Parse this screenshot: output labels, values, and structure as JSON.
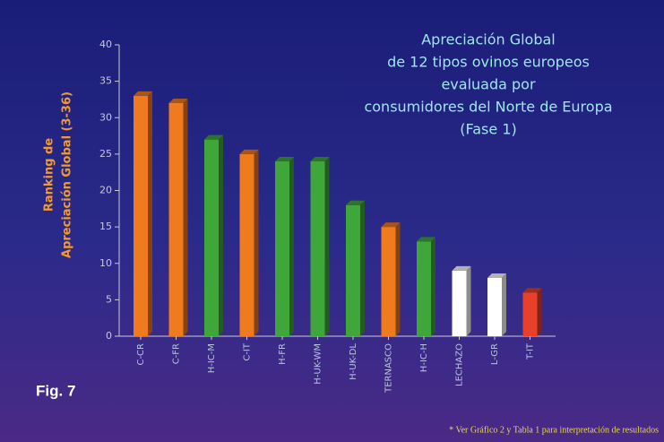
{
  "chart_data": {
    "type": "bar",
    "title": [
      "Apreciación Global",
      "de 12 tipos ovinos europeos",
      "evaluada por",
      "consumidores del Norte de Europa",
      "(Fase 1)"
    ],
    "y_label": [
      "Ranking de",
      "Apreciación Global (3-36)"
    ],
    "categories": [
      "C-CR",
      "C-FR",
      "H-IC-M",
      "C-IT",
      "H-FR",
      "H-UK-WM",
      "H-UK-DL",
      "TERNASCO",
      "H-IC-H",
      "LECHAZO",
      "L-GR",
      "T-IT"
    ],
    "values": [
      33,
      32,
      27,
      25,
      24,
      24,
      18,
      15,
      13,
      9,
      8,
      6
    ],
    "colors": [
      "#f07a1e",
      "#f07a1e",
      "#3fa63a",
      "#f07a1e",
      "#3fa63a",
      "#3fa63a",
      "#3fa63a",
      "#f07a1e",
      "#3fa63a",
      "#ffffff",
      "#ffffff",
      "#e8402a"
    ],
    "ylim": [
      0,
      40
    ],
    "yticks": [
      0,
      5,
      10,
      15,
      20,
      25,
      30,
      35,
      40
    ],
    "figure_label": "Fig. 7",
    "footnote": "* Ver Gráfico 2 y Tabla 1 para interpretación de resultados"
  }
}
